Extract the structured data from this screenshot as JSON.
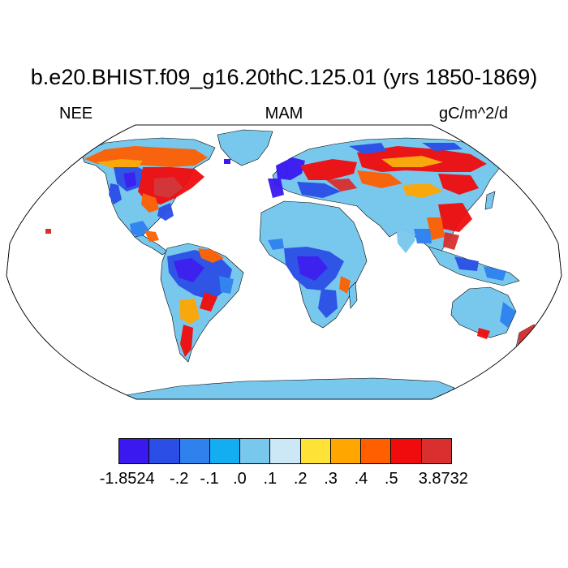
{
  "title": "b.e20.BHIST.f09_g16.20thC.125.01 (yrs 1850-1869)",
  "left_label": "NEE",
  "center_label": "MAM",
  "right_label": "gC/m^2/d",
  "colors": {
    "ocean": "#ffffff",
    "land_default": "#78c8ee",
    "outline": "#000000"
  },
  "colorbar": {
    "colors": [
      "#3a19f0",
      "#2b4fe6",
      "#2f81ee",
      "#13aef2",
      "#78c8ee",
      "#cce8f7",
      "#ffe236",
      "#ffa600",
      "#ff5f00",
      "#f00c0c",
      "#d92f2f"
    ],
    "labels": [
      "-1.8524",
      "-.2",
      "-.1",
      ".0",
      ".1",
      ".2",
      ".3",
      ".4",
      ".5",
      "3.8732"
    ]
  }
}
